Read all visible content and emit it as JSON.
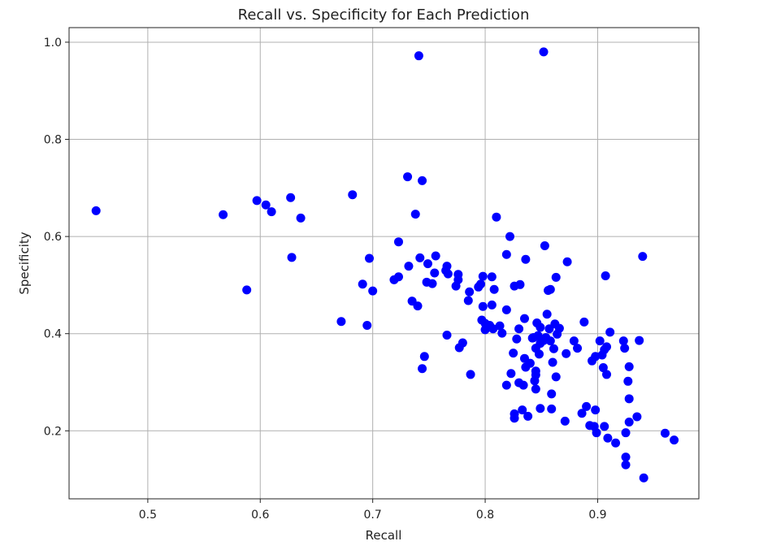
{
  "chart_data": {
    "type": "scatter",
    "title": "Recall vs. Specificity for Each Prediction",
    "xlabel": "Recall",
    "ylabel": "Specificity",
    "xlim": [
      0.43,
      0.99
    ],
    "ylim": [
      0.06,
      1.03
    ],
    "xticks": [
      0.5,
      0.6,
      0.7,
      0.8,
      0.9
    ],
    "yticks": [
      0.2,
      0.4,
      0.6,
      0.8,
      1.0
    ],
    "xtick_labels": [
      "0.5",
      "0.6",
      "0.7",
      "0.8",
      "0.9"
    ],
    "ytick_labels": [
      "0.2",
      "0.4",
      "0.6",
      "0.8",
      "1.0"
    ],
    "grid": true,
    "marker_color": "#0000ff",
    "points": [
      [
        0.454,
        0.653
      ],
      [
        0.567,
        0.645
      ],
      [
        0.588,
        0.49
      ],
      [
        0.597,
        0.674
      ],
      [
        0.605,
        0.665
      ],
      [
        0.61,
        0.651
      ],
      [
        0.627,
        0.68
      ],
      [
        0.628,
        0.557
      ],
      [
        0.636,
        0.638
      ],
      [
        0.672,
        0.425
      ],
      [
        0.682,
        0.686
      ],
      [
        0.691,
        0.502
      ],
      [
        0.695,
        0.417
      ],
      [
        0.697,
        0.555
      ],
      [
        0.7,
        0.488
      ],
      [
        0.719,
        0.511
      ],
      [
        0.723,
        0.517
      ],
      [
        0.723,
        0.589
      ],
      [
        0.731,
        0.723
      ],
      [
        0.732,
        0.539
      ],
      [
        0.735,
        0.467
      ],
      [
        0.738,
        0.646
      ],
      [
        0.74,
        0.457
      ],
      [
        0.741,
        0.972
      ],
      [
        0.742,
        0.556
      ],
      [
        0.744,
        0.715
      ],
      [
        0.744,
        0.328
      ],
      [
        0.746,
        0.353
      ],
      [
        0.748,
        0.506
      ],
      [
        0.749,
        0.544
      ],
      [
        0.753,
        0.503
      ],
      [
        0.755,
        0.525
      ],
      [
        0.756,
        0.56
      ],
      [
        0.765,
        0.53
      ],
      [
        0.766,
        0.397
      ],
      [
        0.766,
        0.539
      ],
      [
        0.767,
        0.523
      ],
      [
        0.774,
        0.498
      ],
      [
        0.776,
        0.511
      ],
      [
        0.776,
        0.522
      ],
      [
        0.777,
        0.371
      ],
      [
        0.78,
        0.381
      ],
      [
        0.785,
        0.468
      ],
      [
        0.786,
        0.486
      ],
      [
        0.787,
        0.316
      ],
      [
        0.794,
        0.496
      ],
      [
        0.796,
        0.502
      ],
      [
        0.797,
        0.428
      ],
      [
        0.798,
        0.518
      ],
      [
        0.798,
        0.456
      ],
      [
        0.8,
        0.408
      ],
      [
        0.8,
        0.421
      ],
      [
        0.804,
        0.417
      ],
      [
        0.806,
        0.517
      ],
      [
        0.806,
        0.459
      ],
      [
        0.807,
        0.41
      ],
      [
        0.808,
        0.491
      ],
      [
        0.81,
        0.64
      ],
      [
        0.813,
        0.416
      ],
      [
        0.815,
        0.401
      ],
      [
        0.819,
        0.294
      ],
      [
        0.819,
        0.563
      ],
      [
        0.819,
        0.449
      ],
      [
        0.822,
        0.6
      ],
      [
        0.823,
        0.318
      ],
      [
        0.825,
        0.36
      ],
      [
        0.826,
        0.498
      ],
      [
        0.826,
        0.235
      ],
      [
        0.826,
        0.226
      ],
      [
        0.828,
        0.389
      ],
      [
        0.83,
        0.41
      ],
      [
        0.83,
        0.299
      ],
      [
        0.831,
        0.501
      ],
      [
        0.833,
        0.243
      ],
      [
        0.834,
        0.294
      ],
      [
        0.835,
        0.431
      ],
      [
        0.835,
        0.349
      ],
      [
        0.836,
        0.553
      ],
      [
        0.836,
        0.331
      ],
      [
        0.838,
        0.23
      ],
      [
        0.84,
        0.339
      ],
      [
        0.842,
        0.391
      ],
      [
        0.843,
        0.392
      ],
      [
        0.844,
        0.303
      ],
      [
        0.845,
        0.37
      ],
      [
        0.845,
        0.323
      ],
      [
        0.845,
        0.315
      ],
      [
        0.845,
        0.286
      ],
      [
        0.846,
        0.422
      ],
      [
        0.847,
        0.396
      ],
      [
        0.848,
        0.358
      ],
      [
        0.849,
        0.38
      ],
      [
        0.849,
        0.246
      ],
      [
        0.849,
        0.413
      ],
      [
        0.852,
        0.386
      ],
      [
        0.852,
        0.98
      ],
      [
        0.853,
        0.581
      ],
      [
        0.854,
        0.392
      ],
      [
        0.855,
        0.44
      ],
      [
        0.856,
        0.489
      ],
      [
        0.857,
        0.41
      ],
      [
        0.858,
        0.491
      ],
      [
        0.858,
        0.385
      ],
      [
        0.859,
        0.245
      ],
      [
        0.859,
        0.276
      ],
      [
        0.86,
        0.341
      ],
      [
        0.861,
        0.369
      ],
      [
        0.862,
        0.42
      ],
      [
        0.863,
        0.516
      ],
      [
        0.863,
        0.311
      ],
      [
        0.864,
        0.399
      ],
      [
        0.866,
        0.411
      ],
      [
        0.871,
        0.22
      ],
      [
        0.872,
        0.359
      ],
      [
        0.873,
        0.548
      ],
      [
        0.879,
        0.385
      ],
      [
        0.882,
        0.37
      ],
      [
        0.886,
        0.236
      ],
      [
        0.888,
        0.424
      ],
      [
        0.89,
        0.25
      ],
      [
        0.893,
        0.211
      ],
      [
        0.895,
        0.344
      ],
      [
        0.897,
        0.209
      ],
      [
        0.898,
        0.243
      ],
      [
        0.898,
        0.353
      ],
      [
        0.899,
        0.196
      ],
      [
        0.902,
        0.385
      ],
      [
        0.904,
        0.356
      ],
      [
        0.905,
        0.33
      ],
      [
        0.906,
        0.209
      ],
      [
        0.906,
        0.367
      ],
      [
        0.907,
        0.519
      ],
      [
        0.908,
        0.373
      ],
      [
        0.908,
        0.316
      ],
      [
        0.909,
        0.185
      ],
      [
        0.911,
        0.403
      ],
      [
        0.916,
        0.175
      ],
      [
        0.923,
        0.385
      ],
      [
        0.924,
        0.37
      ],
      [
        0.925,
        0.196
      ],
      [
        0.925,
        0.146
      ],
      [
        0.925,
        0.13
      ],
      [
        0.927,
        0.302
      ],
      [
        0.928,
        0.332
      ],
      [
        0.928,
        0.266
      ],
      [
        0.928,
        0.218
      ],
      [
        0.935,
        0.229
      ],
      [
        0.937,
        0.386
      ],
      [
        0.94,
        0.559
      ],
      [
        0.941,
        0.103
      ],
      [
        0.96,
        0.195
      ],
      [
        0.968,
        0.181
      ]
    ]
  }
}
